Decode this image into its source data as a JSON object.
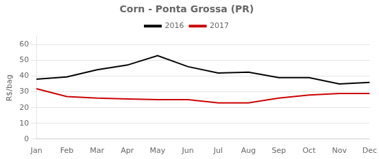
{
  "chart_data": {
    "type": "line",
    "title": "Corn - Ponta Grossa (PR)",
    "categories": [
      "Jan",
      "Feb",
      "Mar",
      "Apr",
      "May",
      "Jun",
      "Jul",
      "Aug",
      "Sep",
      "Oct",
      "Nov",
      "Dec"
    ],
    "series": [
      {
        "name": "2016",
        "color": "#000000",
        "values": [
          38,
          39.5,
          44,
          47,
          53,
          46,
          42,
          42.5,
          39,
          39,
          35,
          36
        ]
      },
      {
        "name": "2017",
        "color": "#cc0000",
        "values": [
          32,
          27,
          26,
          25.5,
          25,
          25,
          23,
          23,
          26,
          28,
          29,
          29
        ]
      }
    ],
    "ylabel": "R$/bag",
    "ylim": [
      0,
      65
    ],
    "yticks": [
      0,
      10,
      20,
      30,
      40,
      50,
      60
    ],
    "grid": true,
    "legend": "top"
  }
}
